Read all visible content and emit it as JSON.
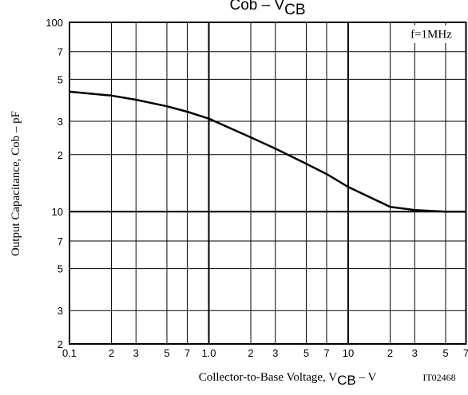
{
  "chart_data": {
    "type": "line",
    "title_parts": [
      "Cob  –  V",
      "CB"
    ],
    "xlabel_parts": [
      "Collector-to-Base Voltage, V",
      "CB",
      "  –  V"
    ],
    "ylabel": "Output Capacitance, Cob  –  pF",
    "annotations": [
      "f=1MHz",
      "IT02468"
    ],
    "xlog": true,
    "ylog": true,
    "grid": true,
    "xlim": [
      0.1,
      70
    ],
    "ylim": [
      2,
      100
    ],
    "xticks": [
      0.1,
      0.2,
      {
        "value": 0.2,
        "label": "2"
      },
      {
        "value": 0.3,
        "label": "3"
      },
      {
        "value": 0.5,
        "label": "5"
      },
      {
        "value": 0.7,
        "label": "7"
      },
      {
        "value": 1,
        "label": "1.0"
      },
      {
        "value": 2,
        "label": "2"
      },
      {
        "value": 3,
        "label": "3"
      },
      {
        "value": 5,
        "label": "5"
      },
      {
        "value": 7,
        "label": "7"
      },
      10,
      {
        "value": 20,
        "label": "2"
      },
      {
        "value": 30,
        "label": "3"
      },
      {
        "value": 50,
        "label": "5"
      },
      {
        "value": 70,
        "label": "7"
      }
    ],
    "yticks": [
      2,
      3,
      5,
      7,
      10,
      {
        "value": 20,
        "label": "2"
      },
      {
        "value": 30,
        "label": "3"
      },
      {
        "value": 50,
        "label": "5"
      },
      {
        "value": 70,
        "label": "7"
      },
      100
    ],
    "x": [
      0.1,
      0.2,
      0.3,
      0.5,
      0.7,
      1,
      2,
      3,
      5,
      7,
      10,
      20,
      30,
      50,
      70
    ],
    "series": [
      {
        "name": "Cob",
        "color": "#000000",
        "values": [
          43,
          41,
          39,
          36,
          33.7,
          31,
          24.7,
          21.5,
          17.9,
          15.8,
          13.5,
          10.6,
          10.2,
          10,
          10
        ]
      }
    ]
  }
}
